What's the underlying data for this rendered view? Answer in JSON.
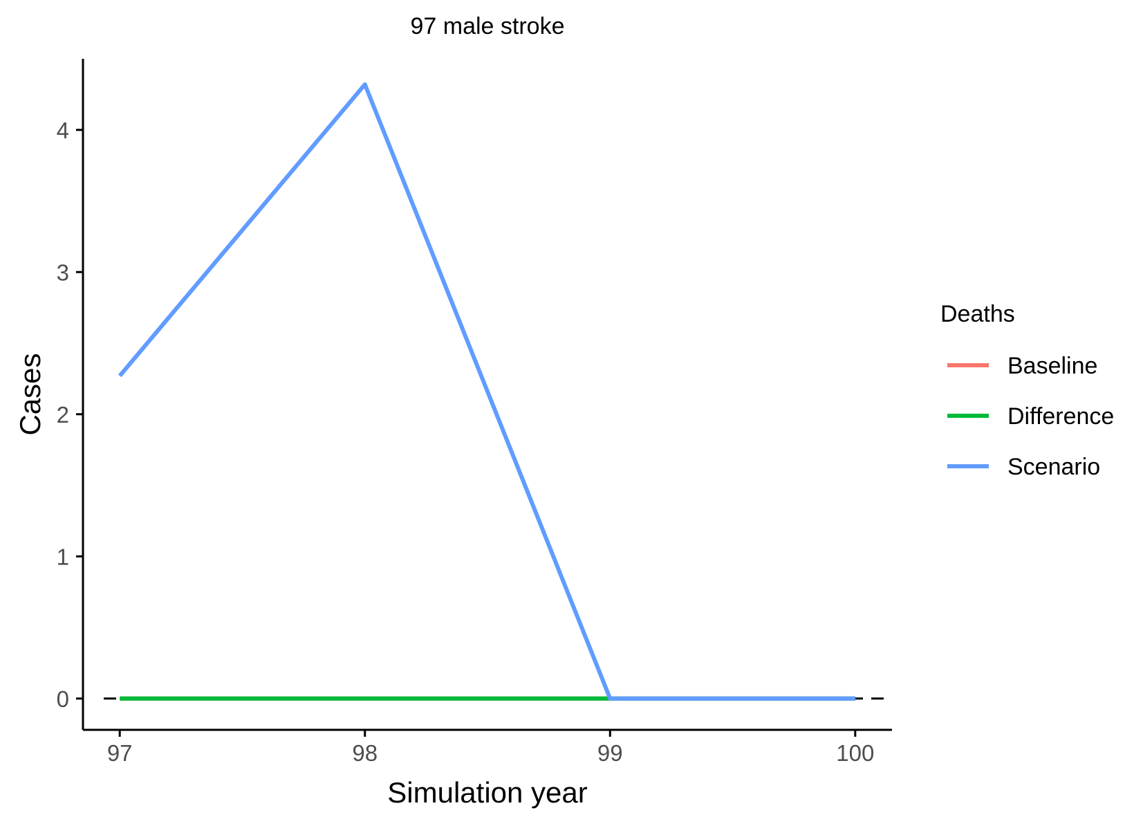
{
  "chart_data": {
    "type": "line",
    "title": "97 male stroke",
    "xlabel": "Simulation year",
    "ylabel": "Cases",
    "x": [
      97,
      98,
      99,
      100
    ],
    "xlim": [
      96.85,
      100.15
    ],
    "ylim": [
      -0.22,
      4.5
    ],
    "x_ticks": [
      97,
      98,
      99,
      100
    ],
    "y_ticks": [
      0,
      1,
      2,
      3,
      4
    ],
    "grid": false,
    "reference_line": {
      "y": 0,
      "style": "dashed",
      "color": "#000000"
    },
    "legend": {
      "title": "Deaths",
      "placement": "right"
    },
    "series": [
      {
        "name": "Baseline",
        "color": "#F8766D",
        "values": [
          0,
          0,
          0,
          0
        ]
      },
      {
        "name": "Difference",
        "color": "#00BA38",
        "values": [
          0,
          0,
          0,
          0
        ]
      },
      {
        "name": "Scenario",
        "color": "#619CFF",
        "values": [
          2.27,
          4.32,
          0,
          0
        ]
      }
    ]
  }
}
